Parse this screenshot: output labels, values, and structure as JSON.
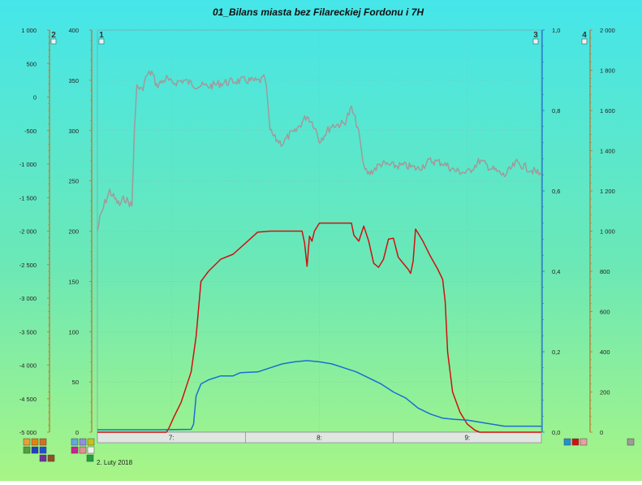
{
  "chart_data": {
    "type": "line",
    "title": "01_Bilans miasta bez Filareckiej Fordonu i 7H",
    "date_label": "2. Luty 2018",
    "x_range": [
      "6:30",
      "9:30"
    ],
    "x_ticks": [
      "7:",
      "8:",
      "9:"
    ],
    "axes": [
      {
        "id": "axis2",
        "number": "2",
        "side": "left",
        "range": [
          -5000,
          1000
        ],
        "tick_labels": [
          "1 000",
          "500",
          "0",
          "-500",
          "-1 000",
          "-1 500",
          "-2 000",
          "-2 500",
          "-3 000",
          "-3 500",
          "-4 000",
          "-4 500",
          "-5 000"
        ]
      },
      {
        "id": "axis1",
        "number": "1",
        "side": "left",
        "range": [
          0,
          400
        ],
        "tick_labels": [
          "400",
          "350",
          "300",
          "250",
          "200",
          "150",
          "100",
          "50",
          "0"
        ]
      },
      {
        "id": "axis3",
        "number": "3",
        "side": "right",
        "range": [
          0,
          1
        ],
        "tick_labels": [
          "1,0",
          "0,8",
          "0,6",
          "0,4",
          "0,2",
          "0,0"
        ]
      },
      {
        "id": "axis4",
        "number": "4",
        "side": "right",
        "range": [
          0,
          2000
        ],
        "tick_labels": [
          "2 000",
          "1 800",
          "1 600",
          "1 400",
          "1 200",
          "1 000",
          "800",
          "600",
          "400",
          "200",
          "0"
        ]
      }
    ],
    "series": [
      {
        "id": "gray",
        "axis": "axis1",
        "color": "#a09a9a",
        "points": [
          [
            "6:30",
            200
          ],
          [
            "6:31",
            212
          ],
          [
            "6:33",
            228
          ],
          [
            "6:35",
            240
          ],
          [
            "6:37",
            232
          ],
          [
            "6:39",
            226
          ],
          [
            "6:41",
            233
          ],
          [
            "6:43",
            228
          ],
          [
            "6:44",
            225
          ],
          [
            "6:45",
            300
          ],
          [
            "6:46",
            345
          ],
          [
            "6:48",
            340
          ],
          [
            "6:50",
            355
          ],
          [
            "6:52",
            358
          ],
          [
            "6:54",
            345
          ],
          [
            "6:56",
            348
          ],
          [
            "6:58",
            352
          ],
          [
            "7:00",
            347
          ],
          [
            "7:05",
            350
          ],
          [
            "7:10",
            345
          ],
          [
            "7:15",
            344
          ],
          [
            "7:20",
            347
          ],
          [
            "7:25",
            349
          ],
          [
            "7:30",
            350
          ],
          [
            "7:35",
            349
          ],
          [
            "7:38",
            352
          ],
          [
            "7:39",
            330
          ],
          [
            "7:40",
            300
          ],
          [
            "7:42",
            292
          ],
          [
            "7:45",
            287
          ],
          [
            "7:48",
            296
          ],
          [
            "7:50",
            298
          ],
          [
            "7:52",
            305
          ],
          [
            "7:55",
            315
          ],
          [
            "7:58",
            305
          ],
          [
            "8:00",
            290
          ],
          [
            "8:05",
            305
          ],
          [
            "8:10",
            307
          ],
          [
            "8:13",
            322
          ],
          [
            "8:16",
            300
          ],
          [
            "8:18",
            262
          ],
          [
            "8:20",
            257
          ],
          [
            "8:25",
            267
          ],
          [
            "8:30",
            265
          ],
          [
            "8:35",
            265
          ],
          [
            "8:40",
            262
          ],
          [
            "8:45",
            270
          ],
          [
            "8:50",
            268
          ],
          [
            "8:55",
            260
          ],
          [
            "9:00",
            258
          ],
          [
            "9:05",
            270
          ],
          [
            "9:10",
            262
          ],
          [
            "9:15",
            255
          ],
          [
            "9:20",
            268
          ],
          [
            "9:25",
            262
          ],
          [
            "9:30",
            256
          ]
        ]
      },
      {
        "id": "red",
        "axis": "axis1",
        "color": "#d01010",
        "points": [
          [
            "6:30",
            0
          ],
          [
            "6:58",
            0
          ],
          [
            "6:59",
            4
          ],
          [
            "7:01",
            15
          ],
          [
            "7:04",
            30
          ],
          [
            "7:06",
            45
          ],
          [
            "7:08",
            60
          ],
          [
            "7:10",
            95
          ],
          [
            "7:12",
            150
          ],
          [
            "7:15",
            160
          ],
          [
            "7:20",
            172
          ],
          [
            "7:25",
            177
          ],
          [
            "7:30",
            188
          ],
          [
            "7:35",
            199
          ],
          [
            "7:40",
            200
          ],
          [
            "7:45",
            200
          ],
          [
            "7:50",
            200
          ],
          [
            "7:53",
            200
          ],
          [
            "7:54",
            188
          ],
          [
            "7:55",
            165
          ],
          [
            "7:56",
            195
          ],
          [
            "7:57",
            190
          ],
          [
            "7:58",
            200
          ],
          [
            "8:00",
            208
          ],
          [
            "8:05",
            208
          ],
          [
            "8:10",
            208
          ],
          [
            "8:13",
            208
          ],
          [
            "8:14",
            196
          ],
          [
            "8:16",
            190
          ],
          [
            "8:18",
            205
          ],
          [
            "8:20",
            190
          ],
          [
            "8:22",
            168
          ],
          [
            "8:24",
            164
          ],
          [
            "8:26",
            172
          ],
          [
            "8:28",
            192
          ],
          [
            "8:30",
            193
          ],
          [
            "8:32",
            174
          ],
          [
            "8:34",
            168
          ],
          [
            "8:36",
            162
          ],
          [
            "8:37",
            158
          ],
          [
            "8:38",
            170
          ],
          [
            "8:39",
            202
          ],
          [
            "8:40",
            198
          ],
          [
            "8:42",
            190
          ],
          [
            "8:45",
            175
          ],
          [
            "8:48",
            162
          ],
          [
            "8:50",
            152
          ],
          [
            "8:51",
            130
          ],
          [
            "8:52",
            80
          ],
          [
            "8:54",
            40
          ],
          [
            "8:57",
            20
          ],
          [
            "9:00",
            8
          ],
          [
            "9:03",
            2
          ],
          [
            "9:05",
            0
          ],
          [
            "9:30",
            0
          ]
        ]
      },
      {
        "id": "blue",
        "axis": "axis3",
        "color": "#1a6ed0",
        "points": [
          [
            "6:30",
            0.006
          ],
          [
            "6:55",
            0.006
          ],
          [
            "7:08",
            0.007
          ],
          [
            "7:09",
            0.02
          ],
          [
            "7:10",
            0.09
          ],
          [
            "7:12",
            0.12
          ],
          [
            "7:15",
            0.13
          ],
          [
            "7:20",
            0.14
          ],
          [
            "7:25",
            0.14
          ],
          [
            "7:28",
            0.148
          ],
          [
            "7:35",
            0.15
          ],
          [
            "7:40",
            0.16
          ],
          [
            "7:45",
            0.17
          ],
          [
            "7:50",
            0.175
          ],
          [
            "7:55",
            0.178
          ],
          [
            "8:00",
            0.175
          ],
          [
            "8:05",
            0.17
          ],
          [
            "8:10",
            0.16
          ],
          [
            "8:15",
            0.15
          ],
          [
            "8:20",
            0.135
          ],
          [
            "8:25",
            0.12
          ],
          [
            "8:30",
            0.1
          ],
          [
            "8:35",
            0.085
          ],
          [
            "8:40",
            0.06
          ],
          [
            "8:45",
            0.045
          ],
          [
            "8:50",
            0.035
          ],
          [
            "8:55",
            0.032
          ],
          [
            "9:00",
            0.03
          ],
          [
            "9:05",
            0.025
          ],
          [
            "9:10",
            0.02
          ],
          [
            "9:15",
            0.015
          ],
          [
            "9:20",
            0.015
          ],
          [
            "9:25",
            0.015
          ],
          [
            "9:30",
            0.015
          ]
        ]
      }
    ],
    "grid": true,
    "legend_swatches_left": [
      "#e8a030",
      "#e88010",
      "#d07020",
      "#50a040",
      "#2040c0",
      "#2050d0",
      "#7030a0",
      "#905020"
    ],
    "legend_swatches_mid": [
      "#60a8e0",
      "#9090e0",
      "#c8c020",
      "#d02090",
      "#e09090",
      "#f0f0f0",
      "#20a040"
    ],
    "legend_swatches_right": [
      "#2090d0",
      "#d01010",
      "#e8a0a0"
    ],
    "legend_swatch_far_right": "#a09a9a"
  }
}
